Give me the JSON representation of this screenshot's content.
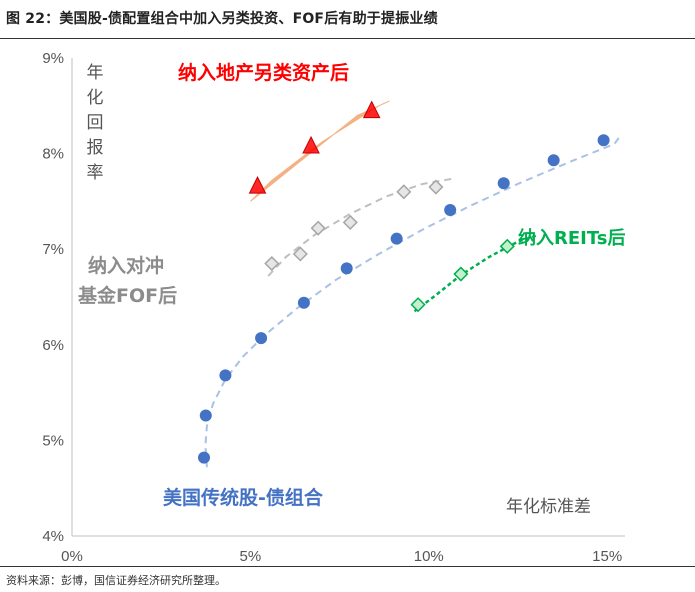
{
  "title": "图 22：美国股-债配置组合中加入另类投资、FOF后有助于提振业绩",
  "source": "资料来源：彭博，国信证券经济研究所整理。",
  "chart_data": {
    "type": "scatter",
    "xlabel": "年化标准差",
    "ylabel": "年化回报率",
    "xlim": [
      0,
      15.5
    ],
    "ylim": [
      4,
      9
    ],
    "x_ticks": [
      "0%",
      "5%",
      "10%",
      "15%"
    ],
    "y_ticks": [
      "4%",
      "5%",
      "6%",
      "7%",
      "8%",
      "9%"
    ],
    "series": [
      {
        "name": "美国传统股-债组合",
        "color": "#4472C4",
        "marker": "circle",
        "points": [
          [
            3.7,
            4.82
          ],
          [
            3.75,
            5.26
          ],
          [
            4.3,
            5.68
          ],
          [
            5.3,
            6.07
          ],
          [
            6.5,
            6.44
          ],
          [
            7.7,
            6.8
          ],
          [
            9.1,
            7.11
          ],
          [
            10.6,
            7.41
          ],
          [
            12.1,
            7.69
          ],
          [
            13.5,
            7.93
          ],
          [
            14.9,
            8.14
          ]
        ]
      },
      {
        "name": "纳入对冲基金FOF后",
        "color": "#A6A6A6",
        "marker": "diamond",
        "points": [
          [
            5.6,
            6.85
          ],
          [
            6.4,
            6.95
          ],
          [
            6.9,
            7.22
          ],
          [
            7.8,
            7.28
          ],
          [
            9.3,
            7.6
          ],
          [
            10.2,
            7.65
          ]
        ]
      },
      {
        "name": "纳入地产另类资产后",
        "color": "#FF0000",
        "marker": "triangle",
        "points": [
          [
            5.2,
            7.66
          ],
          [
            6.7,
            8.08
          ],
          [
            8.4,
            8.45
          ]
        ]
      },
      {
        "name": "纳入REITs后",
        "color": "#00B050",
        "marker": "diamond",
        "points": [
          [
            9.7,
            6.42
          ],
          [
            10.9,
            6.74
          ],
          [
            12.2,
            7.03
          ]
        ]
      }
    ],
    "colors": {
      "blue_trend": "#A8C1E4",
      "gray_trend": "#BFBFBF",
      "green_trend": "#00B050",
      "orange_band": "#F4B183"
    }
  }
}
